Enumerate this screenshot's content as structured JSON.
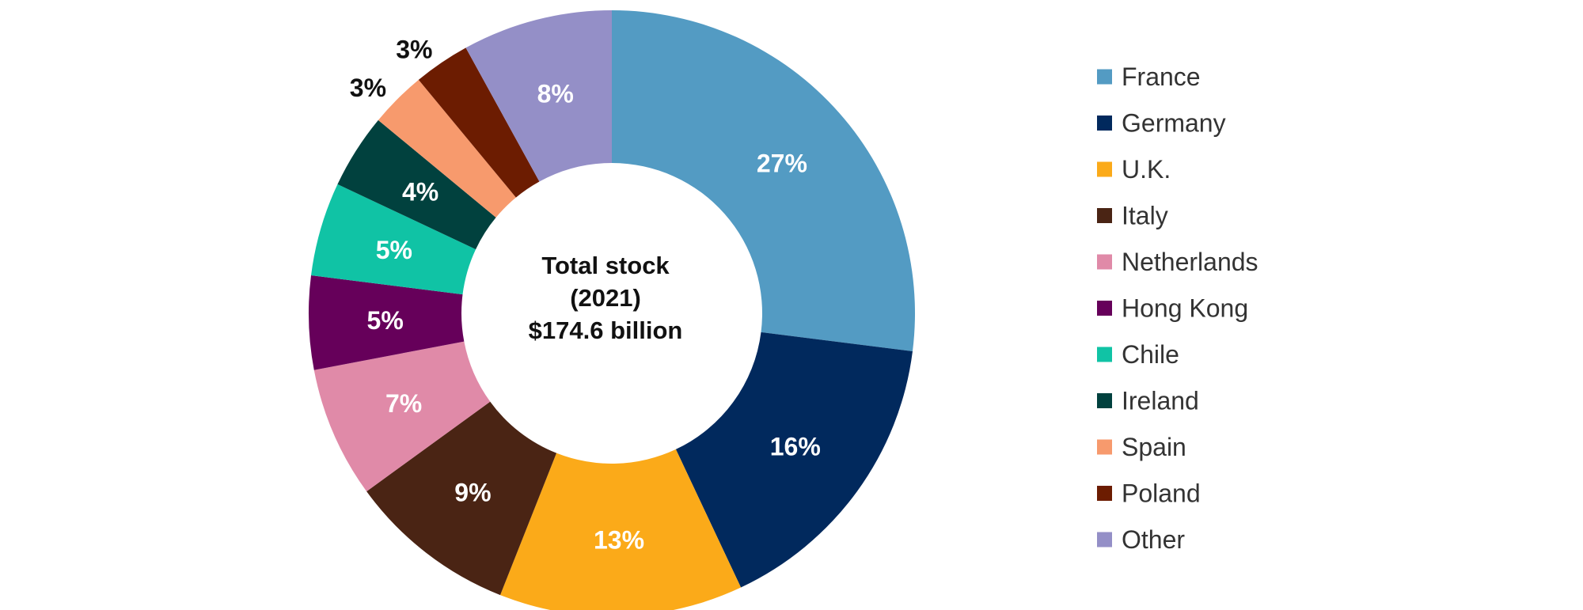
{
  "chart_data": {
    "type": "pie",
    "donut": true,
    "center_label": [
      "Total stock",
      "(2021)",
      "$174.6 billion"
    ],
    "legend_position": "right",
    "unit": "%",
    "slices": [
      {
        "name": "France",
        "value": 27,
        "label": "27%",
        "color": "#539bc3",
        "label_color": "#ffffff"
      },
      {
        "name": "Germany",
        "value": 16,
        "label": "16%",
        "color": "#01295d",
        "label_color": "#ffffff"
      },
      {
        "name": "U.K.",
        "value": 13,
        "label": "13%",
        "color": "#fbaa19",
        "label_color": "#ffffff"
      },
      {
        "name": "Italy",
        "value": 9,
        "label": "9%",
        "color": "#4a2414",
        "label_color": "#ffffff"
      },
      {
        "name": "Netherlands",
        "value": 7,
        "label": "7%",
        "color": "#e08aa8",
        "label_color": "#ffffff"
      },
      {
        "name": "Hong Kong",
        "value": 5,
        "label": "5%",
        "color": "#66005a",
        "label_color": "#ffffff"
      },
      {
        "name": "Chile",
        "value": 5,
        "label": "5%",
        "color": "#10c3a5",
        "label_color": "#ffffff"
      },
      {
        "name": "Ireland",
        "value": 4,
        "label": "4%",
        "color": "#01413e",
        "label_color": "#ffffff"
      },
      {
        "name": "Spain",
        "value": 3,
        "label": "3%",
        "color": "#f79a6d",
        "label_color": "#111111"
      },
      {
        "name": "Poland",
        "value": 3,
        "label": "3%",
        "color": "#6c1c01",
        "label_color": "#111111"
      },
      {
        "name": "Other",
        "value": 8,
        "label": "8%",
        "color": "#948fc7",
        "label_color": "#ffffff"
      }
    ]
  }
}
